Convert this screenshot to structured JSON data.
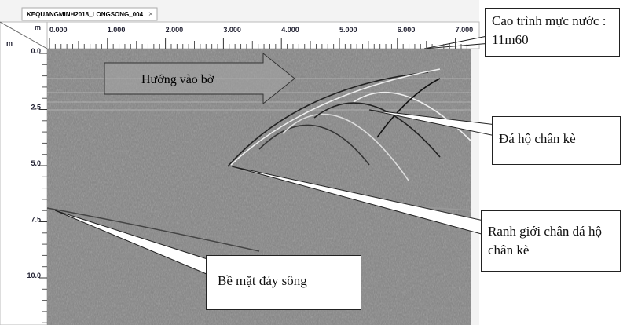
{
  "tab": {
    "title": "KEQUANGMINH2018_LONGSONG_004",
    "close": "×"
  },
  "ruler": {
    "x_unit": "m",
    "x_labels": [
      "0.000",
      "1.000",
      "2.000",
      "3.000",
      "4.000",
      "5.000",
      "6.000",
      "7.000"
    ],
    "y_unit": "m",
    "y_labels": [
      "0.0",
      "2.5",
      "5.0",
      "7.5",
      "10.0"
    ]
  },
  "annotations": {
    "water_level": "Cao trình mực nước : 11m60",
    "direction": "Hướng vào bờ",
    "rock": "Đá hộ chân kè",
    "rock_boundary": "Ranh giới chân đá hộ chân kè",
    "riverbed": "Bề mặt đáy sông"
  }
}
